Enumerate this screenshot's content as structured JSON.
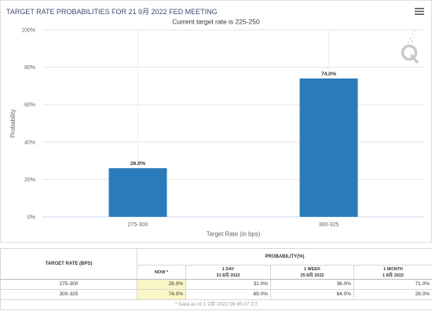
{
  "ui": {
    "menu_icon": "hamburger-menu-icon",
    "watermark_icon": "q-watermark-icon",
    "title_color": "#3b4a6b"
  },
  "chart_data": {
    "type": "bar",
    "title": "TARGET RATE PROBABILITIES FOR 21 9月 2022 FED MEETING",
    "subtitle": "Current target rate is 225-250",
    "categories": [
      "275-300",
      "300-325"
    ],
    "values": [
      26.0,
      74.0
    ],
    "data_labels": [
      "26.0%",
      "74.0%"
    ],
    "xlabel": "Target Rate (in bps)",
    "ylabel": "Probability",
    "ylim": [
      0,
      100
    ],
    "yticks": [
      0,
      20,
      40,
      60,
      80,
      100
    ],
    "ytick_labels": [
      "0%",
      "20%",
      "40%",
      "60%",
      "80%",
      "100%"
    ],
    "grid": true,
    "bar_color": "#2b7bba"
  },
  "table": {
    "row_header": "TARGET RATE (BPS)",
    "group_header": "PROBABILITY(%)",
    "columns": [
      {
        "label": "NOW *"
      },
      {
        "label": "1 DAY",
        "date": "31 8月 2022"
      },
      {
        "label": "1 WEEK",
        "date": "25 8月 2022"
      },
      {
        "label": "1 MONTH",
        "date": "1 8月 2022"
      }
    ],
    "rows": [
      {
        "rate": "275-300",
        "values": [
          "26.0%",
          "31.0%",
          "36.0%",
          "71.0%"
        ]
      },
      {
        "rate": "300-325",
        "values": [
          "74.0%",
          "69.0%",
          "64.0%",
          "29.0%"
        ]
      }
    ],
    "highlight_color": "#faf6c6",
    "note": "* Data as of 1 9月 2022 09:45:07 CT"
  }
}
